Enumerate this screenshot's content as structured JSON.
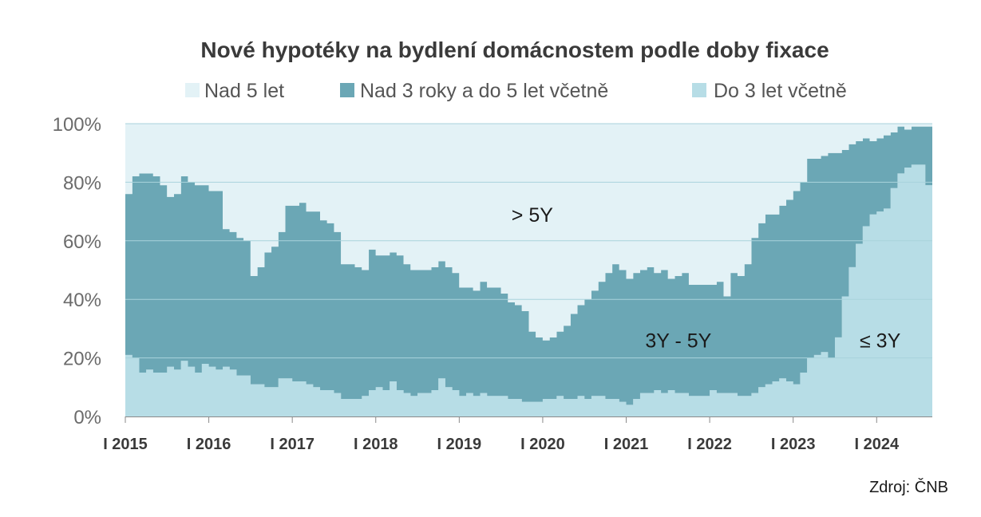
{
  "chart_data": {
    "type": "area",
    "stacking": "percent",
    "title": "Nové hypotéky na bydlení domácnostem podle doby fixace",
    "legend": {
      "position": "top",
      "entries": [
        "Nad 5 let",
        "Nad 3 roky a do 5 let včetně",
        "Do 3 let včetně"
      ]
    },
    "colors": {
      "Nad 5 let": "#e3f2f6",
      "Nad 3 roky a do 5 let včetně": "#6ba7b5",
      "Do 3 let včetně": "#b7dde6",
      "gridline": "#a9d3dc",
      "axis": "#8a8a8a"
    },
    "ylim": [
      0,
      100
    ],
    "yticks": [
      {
        "value": 0,
        "label": "0%"
      },
      {
        "value": 20,
        "label": "20%"
      },
      {
        "value": 40,
        "label": "40%"
      },
      {
        "value": 60,
        "label": "60%"
      },
      {
        "value": 80,
        "label": "80%"
      },
      {
        "value": 100,
        "label": "100%"
      }
    ],
    "grid": true,
    "x_start": "2015-01",
    "x_frequency": "monthly",
    "xticks": [
      "I 2015",
      "I 2016",
      "I 2017",
      "I 2018",
      "I 2019",
      "I 2020",
      "I 2021",
      "I 2022",
      "I 2023",
      "I 2024"
    ],
    "series": [
      {
        "name": "Do 3 let včetně",
        "values": [
          21,
          20,
          15,
          16,
          15,
          15,
          17,
          16,
          19,
          17,
          15,
          18,
          17,
          16,
          17,
          16,
          14,
          14,
          11,
          11,
          10,
          10,
          13,
          13,
          12,
          12,
          11,
          10,
          9,
          9,
          8,
          6,
          6,
          6,
          7,
          9,
          10,
          9,
          12,
          9,
          8,
          7,
          8,
          8,
          9,
          13,
          10,
          9,
          7,
          8,
          7,
          8,
          7,
          7,
          7,
          6,
          6,
          5,
          5,
          5,
          6,
          6,
          7,
          6,
          6,
          7,
          6,
          7,
          7,
          6,
          6,
          5,
          4,
          6,
          8,
          8,
          9,
          8,
          9,
          8,
          8,
          7,
          7,
          7,
          9,
          8,
          8,
          8,
          7,
          7,
          8,
          10,
          11,
          12,
          13,
          12,
          11,
          15,
          20,
          21,
          22,
          20,
          27,
          41,
          51,
          59,
          65,
          69,
          70,
          71,
          78,
          83,
          85,
          86,
          86,
          79
        ],
        "final_partial": 79
      },
      {
        "name": "Nad 3 roky a do 5 let včetně",
        "values": [
          55,
          62,
          68,
          67,
          67,
          64,
          58,
          60,
          63,
          63,
          64,
          61,
          60,
          61,
          47,
          47,
          47,
          46,
          37,
          40,
          46,
          48,
          50,
          59,
          60,
          61,
          59,
          60,
          58,
          57,
          55,
          46,
          46,
          45,
          43,
          48,
          45,
          46,
          44,
          46,
          44,
          43,
          42,
          42,
          42,
          40,
          41,
          40,
          37,
          36,
          36,
          38,
          37,
          37,
          35,
          33,
          32,
          31,
          24,
          22,
          20,
          21,
          22,
          25,
          29,
          31,
          34,
          36,
          39,
          43,
          46,
          45,
          43,
          43,
          42,
          43,
          40,
          42,
          38,
          40,
          41,
          38,
          38,
          38,
          36,
          38,
          33,
          41,
          41,
          45,
          53,
          56,
          58,
          57,
          59,
          62,
          66,
          65,
          68,
          67,
          67,
          70,
          63,
          50,
          42,
          35,
          30,
          25,
          25,
          25,
          19,
          16,
          13,
          13,
          13,
          20
        ],
        "final_partial": 20
      },
      {
        "name": "Nad 5 let",
        "values": [
          24,
          18,
          17,
          17,
          18,
          21,
          25,
          24,
          18,
          20,
          21,
          21,
          23,
          23,
          36,
          37,
          39,
          40,
          52,
          49,
          44,
          42,
          37,
          28,
          28,
          27,
          30,
          30,
          33,
          34,
          37,
          48,
          48,
          49,
          50,
          43,
          45,
          45,
          44,
          45,
          48,
          50,
          50,
          50,
          49,
          47,
          49,
          51,
          56,
          56,
          57,
          54,
          56,
          56,
          58,
          61,
          62,
          64,
          71,
          73,
          74,
          73,
          71,
          69,
          65,
          62,
          60,
          57,
          54,
          51,
          48,
          50,
          53,
          51,
          50,
          49,
          51,
          50,
          53,
          52,
          51,
          55,
          55,
          55,
          55,
          54,
          59,
          51,
          52,
          48,
          39,
          34,
          31,
          31,
          28,
          26,
          23,
          20,
          12,
          12,
          11,
          10,
          10,
          9,
          7,
          6,
          5,
          6,
          5,
          4,
          3,
          1,
          2,
          1,
          1,
          1
        ],
        "final_partial": 1
      }
    ],
    "annotations": [
      {
        "text": "> 5Y",
        "x": "2019-11",
        "y": 69
      },
      {
        "text": "3Y - 5Y",
        "x": "2021-08",
        "y": 26
      },
      {
        "text": "≤ 3Y",
        "x": "2024-01",
        "y": 26
      }
    ]
  },
  "source": "Zdroj: ČNB"
}
